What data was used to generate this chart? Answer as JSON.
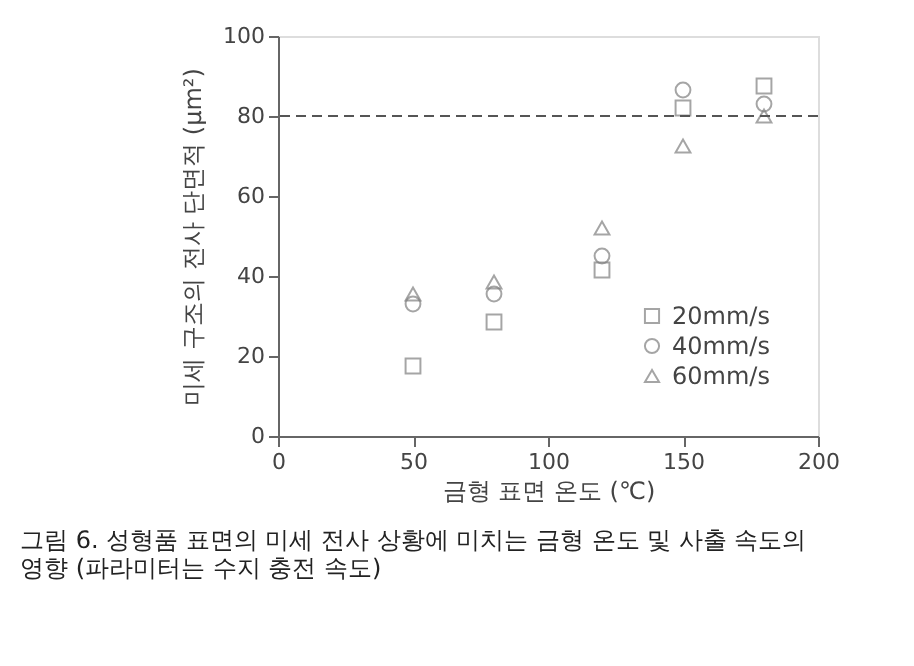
{
  "chart_data": {
    "type": "scatter",
    "xlabel": "금형 표면 온도 (℃)",
    "ylabel": "미세 구조의 전사 단면적 (μm²)",
    "x": [
      50,
      80,
      120,
      150,
      180
    ],
    "series": [
      {
        "name": "20mm/s",
        "color": "#808080",
        "marker": "square",
        "values": [
          17.5,
          28.5,
          41.5,
          82,
          87.5
        ]
      },
      {
        "name": "40mm/s",
        "color": "#808080",
        "marker": "circle",
        "values": [
          33,
          35.5,
          45,
          86.5,
          83
        ]
      },
      {
        "name": "60mm/s",
        "color": "#808080",
        "marker": "triangle",
        "values": [
          35.5,
          38.5,
          52,
          72.5,
          80
        ]
      }
    ],
    "xlim": [
      0,
      200
    ],
    "xticks": [
      0,
      50,
      100,
      150,
      200
    ],
    "ylim": [
      0,
      100
    ],
    "yticks": [
      0,
      20,
      40,
      60,
      80,
      100
    ],
    "ref_lines": [
      {
        "axis": "y",
        "value": 80,
        "label": null,
        "color": "#555555",
        "line_style": "dashed"
      }
    ],
    "legend": "bottom right",
    "grid": false,
    "annotations": [
      "그림 6. 성형품 표면의 미세 전사 상황에 미치는 금형 온도 및 사출 속도의",
      "영향 (파라미터는 수지 충전 속도)"
    ]
  }
}
